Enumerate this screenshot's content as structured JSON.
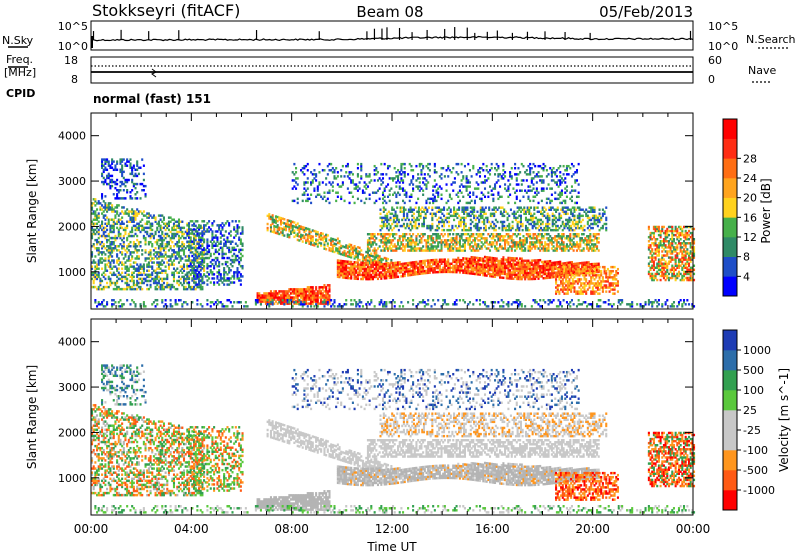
{
  "header": {
    "station": "Stokkseyri (fitACF)",
    "beam": "Beam 08",
    "date": "05/Feb/2013"
  },
  "strip": {
    "nsky_label": "N.Sky",
    "nsearch_label": "N.Search",
    "nsky_top": "10^5",
    "nsky_bottom": "10^0",
    "nsearch_top": "10^5",
    "nsearch_bottom": "10^0",
    "freq_label": "Freq.",
    "freq_unit": "[MHz]",
    "freq_top": "18",
    "freq_bottom": "8",
    "nave_label": "Nave",
    "nave_top": "60",
    "nave_bottom": "0",
    "cpid_label": "CPID",
    "cpid_value": "normal (fast) 151"
  },
  "colors": {
    "power": [
      "#0000ff",
      "#1e4ec8",
      "#2f8a66",
      "#46b04a",
      "#ffd21e",
      "#ffa41e",
      "#ff6e14",
      "#ff2d14",
      "#ff0000"
    ],
    "velocity": [
      "#ff0000",
      "#ff5a14",
      "#ff961e",
      "#c8c8c8",
      "#c8c8c8",
      "#5ac83c",
      "#32a050",
      "#2d6eaa",
      "#1e3cb4"
    ],
    "ground": "#b4b4b4"
  },
  "chart_data": [
    {
      "type": "heatmap",
      "panel": "power",
      "xlabel": "",
      "ylabel": "Slant Range [km]",
      "x_ticks": [
        "00:00",
        "04:00",
        "08:00",
        "12:00",
        "16:00",
        "20:00",
        "00:00"
      ],
      "x_range_hours": [
        0,
        24
      ],
      "y_ticks": [
        1000,
        2000,
        3000,
        4000
      ],
      "ylim": [
        180,
        4500
      ],
      "colorbar": {
        "label": "Power [dB]",
        "ticks": [
          4,
          8,
          12,
          16,
          20,
          24,
          28
        ],
        "range": [
          0,
          32
        ]
      }
    },
    {
      "type": "heatmap",
      "panel": "velocity",
      "xlabel": "Time UT",
      "ylabel": "Slant Range [km]",
      "x_ticks": [
        "00:00",
        "04:00",
        "08:00",
        "12:00",
        "16:00",
        "20:00",
        "00:00"
      ],
      "x_range_hours": [
        0,
        24
      ],
      "y_ticks": [
        1000,
        2000,
        3000,
        4000
      ],
      "ylim": [
        180,
        4500
      ],
      "colorbar": {
        "label": "Velocity [m s^-1]",
        "ticks": [
          -1000,
          -500,
          -100,
          -25,
          25,
          100,
          500,
          1000
        ]
      }
    }
  ]
}
